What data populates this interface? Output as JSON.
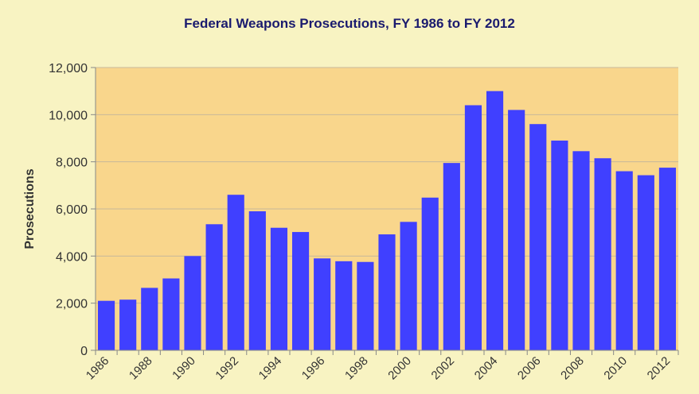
{
  "chart_data": {
    "type": "bar",
    "title": "Federal Weapons Prosecutions, FY 1986 to FY 2012",
    "xlabel": "",
    "ylabel": "Prosecutions",
    "ylim": [
      0,
      12000
    ],
    "yticks": [
      "0",
      "2,000",
      "4,000",
      "6,000",
      "8,000",
      "10,000",
      "12,000"
    ],
    "ytick_values": [
      0,
      2000,
      4000,
      6000,
      8000,
      10000,
      12000
    ],
    "categories": [
      "1986",
      "1987",
      "1988",
      "1989",
      "1990",
      "1991",
      "1992",
      "1993",
      "1994",
      "1995",
      "1996",
      "1997",
      "1998",
      "1999",
      "2000",
      "2001",
      "2002",
      "2003",
      "2004",
      "2005",
      "2006",
      "2007",
      "2008",
      "2009",
      "2010",
      "2011",
      "2012"
    ],
    "xtick_labels": [
      "1986",
      "",
      "1988",
      "",
      "1990",
      "",
      "1992",
      "",
      "1994",
      "",
      "1996",
      "",
      "1998",
      "",
      "2000",
      "",
      "2002",
      "",
      "2004",
      "",
      "2006",
      "",
      "2008",
      "",
      "2010",
      "",
      "2012"
    ],
    "values": [
      2100,
      2150,
      2650,
      3050,
      4000,
      5350,
      6600,
      5900,
      5200,
      5020,
      3900,
      3780,
      3750,
      4920,
      5450,
      6480,
      7950,
      10400,
      11000,
      10200,
      9600,
      8900,
      8450,
      8150,
      7600,
      7430,
      7750
    ],
    "grid": true,
    "legend": "none",
    "colors": {
      "bar": "#4040ff",
      "plot_bg": "#f9d68c",
      "gridline": "#c8b89a",
      "title": "#1a1a6e"
    }
  }
}
